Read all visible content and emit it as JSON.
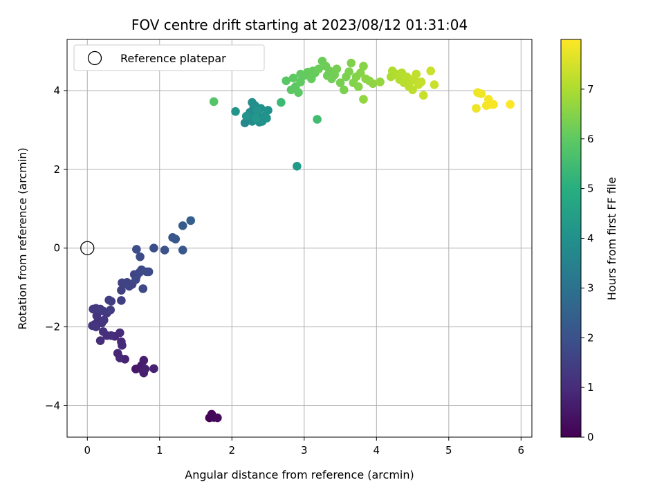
{
  "chart_data": {
    "type": "scatter",
    "title": "FOV centre drift starting at 2023/08/12 01:31:04",
    "xlabel": "Angular distance from reference (arcmin)",
    "ylabel": "Rotation from reference (arcmin)",
    "xlim": [
      -0.28,
      6.15
    ],
    "ylim": [
      -4.8,
      5.3
    ],
    "x_ticks": [
      0,
      1,
      2,
      3,
      4,
      5,
      6
    ],
    "x_tick_labels": [
      "0",
      "1",
      "2",
      "3",
      "4",
      "5",
      "6"
    ],
    "y_ticks": [
      -4,
      -2,
      0,
      2,
      4
    ],
    "y_tick_labels": [
      "−4",
      "−2",
      "0",
      "2",
      "4"
    ],
    "grid": true,
    "legend": {
      "position": "upper-left",
      "entries": [
        {
          "label": "Reference platepar",
          "marker": "open-circle",
          "color": "#000000"
        }
      ]
    },
    "colorbar": {
      "label": "Hours from first FF file",
      "colormap": "viridis",
      "range": [
        0,
        8
      ],
      "ticks": [
        0,
        1,
        2,
        3,
        4,
        5,
        6,
        7
      ],
      "tick_labels": [
        "0",
        "1",
        "2",
        "3",
        "4",
        "5",
        "6",
        "7"
      ]
    },
    "reference_point": {
      "x": 0,
      "y": 0
    },
    "points": [
      {
        "x": 1.69,
        "y": -4.31,
        "t": 0.05
      },
      {
        "x": 1.72,
        "y": -4.22,
        "t": 0.1
      },
      {
        "x": 1.75,
        "y": -4.3,
        "t": 0.15
      },
      {
        "x": 1.8,
        "y": -4.31,
        "t": 0.2
      },
      {
        "x": 0.67,
        "y": -3.07,
        "t": 0.5
      },
      {
        "x": 0.72,
        "y": -3.05,
        "t": 0.55
      },
      {
        "x": 0.75,
        "y": -2.98,
        "t": 0.6
      },
      {
        "x": 0.78,
        "y": -2.85,
        "t": 0.65
      },
      {
        "x": 0.78,
        "y": -3.17,
        "t": 0.7
      },
      {
        "x": 0.8,
        "y": -3.07,
        "t": 0.72
      },
      {
        "x": 0.92,
        "y": -3.06,
        "t": 0.75
      },
      {
        "x": 0.52,
        "y": -2.82,
        "t": 0.8
      },
      {
        "x": 0.42,
        "y": -2.67,
        "t": 0.85
      },
      {
        "x": 0.45,
        "y": -2.79,
        "t": 0.88
      },
      {
        "x": 0.38,
        "y": -2.24,
        "t": 0.9
      },
      {
        "x": 0.47,
        "y": -2.38,
        "t": 0.92
      },
      {
        "x": 0.48,
        "y": -2.47,
        "t": 0.95
      },
      {
        "x": 0.45,
        "y": -2.15,
        "t": 0.97
      },
      {
        "x": 0.33,
        "y": -2.22,
        "t": 1.0
      },
      {
        "x": 0.18,
        "y": -2.35,
        "t": 1.02
      },
      {
        "x": 0.22,
        "y": -2.12,
        "t": 1.05
      },
      {
        "x": 0.27,
        "y": -2.22,
        "t": 1.07
      },
      {
        "x": 0.1,
        "y": -1.94,
        "t": 1.1
      },
      {
        "x": 0.15,
        "y": -1.85,
        "t": 1.12
      },
      {
        "x": 0.2,
        "y": -1.9,
        "t": 1.15
      },
      {
        "x": 0.13,
        "y": -1.72,
        "t": 1.17
      },
      {
        "x": 0.07,
        "y": -1.97,
        "t": 1.2
      },
      {
        "x": 0.12,
        "y": -2.0,
        "t": 1.22
      },
      {
        "x": 0.23,
        "y": -1.83,
        "t": 1.25
      },
      {
        "x": 0.27,
        "y": -1.65,
        "t": 1.27
      },
      {
        "x": 0.08,
        "y": -1.55,
        "t": 1.3
      },
      {
        "x": 0.12,
        "y": -1.53,
        "t": 1.32
      },
      {
        "x": 0.18,
        "y": -1.55,
        "t": 1.35
      },
      {
        "x": 0.22,
        "y": -1.6,
        "t": 1.37
      },
      {
        "x": 0.32,
        "y": -1.57,
        "t": 1.4
      },
      {
        "x": 0.3,
        "y": -1.32,
        "t": 1.42
      },
      {
        "x": 0.33,
        "y": -1.35,
        "t": 1.45
      },
      {
        "x": 0.47,
        "y": -1.33,
        "t": 1.47
      },
      {
        "x": 0.47,
        "y": -1.07,
        "t": 1.5
      },
      {
        "x": 0.48,
        "y": -0.88,
        "t": 1.52
      },
      {
        "x": 0.52,
        "y": -0.9,
        "t": 1.55
      },
      {
        "x": 0.55,
        "y": -0.87,
        "t": 1.57
      },
      {
        "x": 0.58,
        "y": -0.97,
        "t": 1.6
      },
      {
        "x": 0.62,
        "y": -0.92,
        "t": 1.62
      },
      {
        "x": 0.65,
        "y": -0.67,
        "t": 1.65
      },
      {
        "x": 0.68,
        "y": -0.72,
        "t": 1.67
      },
      {
        "x": 0.72,
        "y": -0.62,
        "t": 1.7
      },
      {
        "x": 0.67,
        "y": -0.8,
        "t": 1.72
      },
      {
        "x": 0.77,
        "y": -1.03,
        "t": 1.75
      },
      {
        "x": 0.75,
        "y": -0.55,
        "t": 1.77
      },
      {
        "x": 0.82,
        "y": -0.6,
        "t": 1.8
      },
      {
        "x": 0.85,
        "y": -0.6,
        "t": 1.82
      },
      {
        "x": 0.73,
        "y": -0.22,
        "t": 1.85
      },
      {
        "x": 0.68,
        "y": -0.03,
        "t": 1.87
      },
      {
        "x": 0.92,
        "y": 0.0,
        "t": 1.9
      },
      {
        "x": 1.07,
        "y": -0.05,
        "t": 2.0
      },
      {
        "x": 1.18,
        "y": 0.27,
        "t": 2.1
      },
      {
        "x": 1.22,
        "y": 0.23,
        "t": 2.15
      },
      {
        "x": 1.32,
        "y": -0.05,
        "t": 2.2
      },
      {
        "x": 1.32,
        "y": 0.57,
        "t": 2.3
      },
      {
        "x": 1.43,
        "y": 0.7,
        "t": 2.4
      },
      {
        "x": 2.18,
        "y": 3.18,
        "t": 3.7
      },
      {
        "x": 2.22,
        "y": 3.3,
        "t": 3.75
      },
      {
        "x": 2.28,
        "y": 3.22,
        "t": 3.8
      },
      {
        "x": 2.25,
        "y": 3.45,
        "t": 3.82
      },
      {
        "x": 2.3,
        "y": 3.55,
        "t": 3.85
      },
      {
        "x": 2.35,
        "y": 3.4,
        "t": 3.87
      },
      {
        "x": 2.38,
        "y": 3.2,
        "t": 3.9
      },
      {
        "x": 2.32,
        "y": 3.62,
        "t": 3.92
      },
      {
        "x": 2.28,
        "y": 3.7,
        "t": 3.95
      },
      {
        "x": 2.4,
        "y": 3.55,
        "t": 3.97
      },
      {
        "x": 2.45,
        "y": 3.35,
        "t": 4.0
      },
      {
        "x": 2.42,
        "y": 3.22,
        "t": 4.02
      },
      {
        "x": 2.5,
        "y": 3.5,
        "t": 4.05
      },
      {
        "x": 2.48,
        "y": 3.3,
        "t": 4.07
      },
      {
        "x": 2.2,
        "y": 3.35,
        "t": 4.1
      },
      {
        "x": 2.35,
        "y": 3.5,
        "t": 4.12
      },
      {
        "x": 2.05,
        "y": 3.47,
        "t": 4.15
      },
      {
        "x": 2.33,
        "y": 3.3,
        "t": 4.2
      },
      {
        "x": 2.9,
        "y": 2.08,
        "t": 4.3
      },
      {
        "x": 2.68,
        "y": 3.7,
        "t": 5.4
      },
      {
        "x": 3.18,
        "y": 3.27,
        "t": 5.5
      },
      {
        "x": 1.75,
        "y": 3.72,
        "t": 5.8
      },
      {
        "x": 2.75,
        "y": 4.25,
        "t": 5.9
      },
      {
        "x": 2.82,
        "y": 4.02,
        "t": 5.92
      },
      {
        "x": 2.88,
        "y": 4.1,
        "t": 5.95
      },
      {
        "x": 2.92,
        "y": 3.95,
        "t": 5.97
      },
      {
        "x": 2.85,
        "y": 4.32,
        "t": 6.0
      },
      {
        "x": 2.95,
        "y": 4.22,
        "t": 6.02
      },
      {
        "x": 3.0,
        "y": 4.38,
        "t": 6.05
      },
      {
        "x": 3.05,
        "y": 4.47,
        "t": 6.07
      },
      {
        "x": 3.1,
        "y": 4.3,
        "t": 6.1
      },
      {
        "x": 3.15,
        "y": 4.45,
        "t": 6.12
      },
      {
        "x": 3.2,
        "y": 4.55,
        "t": 6.15
      },
      {
        "x": 3.25,
        "y": 4.75,
        "t": 6.17
      },
      {
        "x": 3.3,
        "y": 4.62,
        "t": 6.2
      },
      {
        "x": 3.35,
        "y": 4.5,
        "t": 6.22
      },
      {
        "x": 3.38,
        "y": 4.3,
        "t": 6.25
      },
      {
        "x": 3.42,
        "y": 4.4,
        "t": 6.27
      },
      {
        "x": 3.45,
        "y": 4.55,
        "t": 6.3
      },
      {
        "x": 3.5,
        "y": 4.2,
        "t": 6.32
      },
      {
        "x": 3.55,
        "y": 4.02,
        "t": 6.35
      },
      {
        "x": 3.58,
        "y": 4.35,
        "t": 6.37
      },
      {
        "x": 3.62,
        "y": 4.48,
        "t": 6.4
      },
      {
        "x": 3.65,
        "y": 4.7,
        "t": 6.42
      },
      {
        "x": 3.68,
        "y": 4.2,
        "t": 6.45
      },
      {
        "x": 3.72,
        "y": 4.35,
        "t": 6.47
      },
      {
        "x": 3.75,
        "y": 4.1,
        "t": 6.5
      },
      {
        "x": 3.78,
        "y": 4.45,
        "t": 6.52
      },
      {
        "x": 3.82,
        "y": 4.62,
        "t": 6.55
      },
      {
        "x": 3.85,
        "y": 4.3,
        "t": 6.57
      },
      {
        "x": 3.9,
        "y": 4.25,
        "t": 6.6
      },
      {
        "x": 3.95,
        "y": 4.18,
        "t": 6.62
      },
      {
        "x": 3.82,
        "y": 3.78,
        "t": 6.65
      },
      {
        "x": 4.05,
        "y": 4.22,
        "t": 6.7
      },
      {
        "x": 2.95,
        "y": 4.42,
        "t": 6.05
      },
      {
        "x": 3.12,
        "y": 4.5,
        "t": 6.1
      },
      {
        "x": 3.32,
        "y": 4.38,
        "t": 6.2
      },
      {
        "x": 4.2,
        "y": 4.35,
        "t": 7.0
      },
      {
        "x": 4.22,
        "y": 4.5,
        "t": 7.02
      },
      {
        "x": 4.28,
        "y": 4.42,
        "t": 7.05
      },
      {
        "x": 4.32,
        "y": 4.28,
        "t": 7.07
      },
      {
        "x": 4.35,
        "y": 4.45,
        "t": 7.1
      },
      {
        "x": 4.38,
        "y": 4.2,
        "t": 7.12
      },
      {
        "x": 4.42,
        "y": 4.35,
        "t": 7.15
      },
      {
        "x": 4.45,
        "y": 4.1,
        "t": 7.17
      },
      {
        "x": 4.5,
        "y": 4.02,
        "t": 7.2
      },
      {
        "x": 4.52,
        "y": 4.3,
        "t": 7.22
      },
      {
        "x": 4.55,
        "y": 4.42,
        "t": 7.25
      },
      {
        "x": 4.58,
        "y": 4.15,
        "t": 7.27
      },
      {
        "x": 4.62,
        "y": 4.22,
        "t": 7.3
      },
      {
        "x": 4.65,
        "y": 3.88,
        "t": 7.32
      },
      {
        "x": 4.75,
        "y": 4.5,
        "t": 7.35
      },
      {
        "x": 4.8,
        "y": 4.15,
        "t": 7.37
      },
      {
        "x": 4.48,
        "y": 4.25,
        "t": 7.2
      },
      {
        "x": 4.3,
        "y": 4.38,
        "t": 7.05
      },
      {
        "x": 5.38,
        "y": 3.55,
        "t": 7.8
      },
      {
        "x": 5.4,
        "y": 3.95,
        "t": 7.82
      },
      {
        "x": 5.45,
        "y": 3.92,
        "t": 7.85
      },
      {
        "x": 5.52,
        "y": 3.62,
        "t": 7.87
      },
      {
        "x": 5.55,
        "y": 3.78,
        "t": 7.9
      },
      {
        "x": 5.58,
        "y": 3.65,
        "t": 7.92
      },
      {
        "x": 5.62,
        "y": 3.65,
        "t": 7.94
      },
      {
        "x": 5.85,
        "y": 3.65,
        "t": 7.97
      }
    ]
  }
}
